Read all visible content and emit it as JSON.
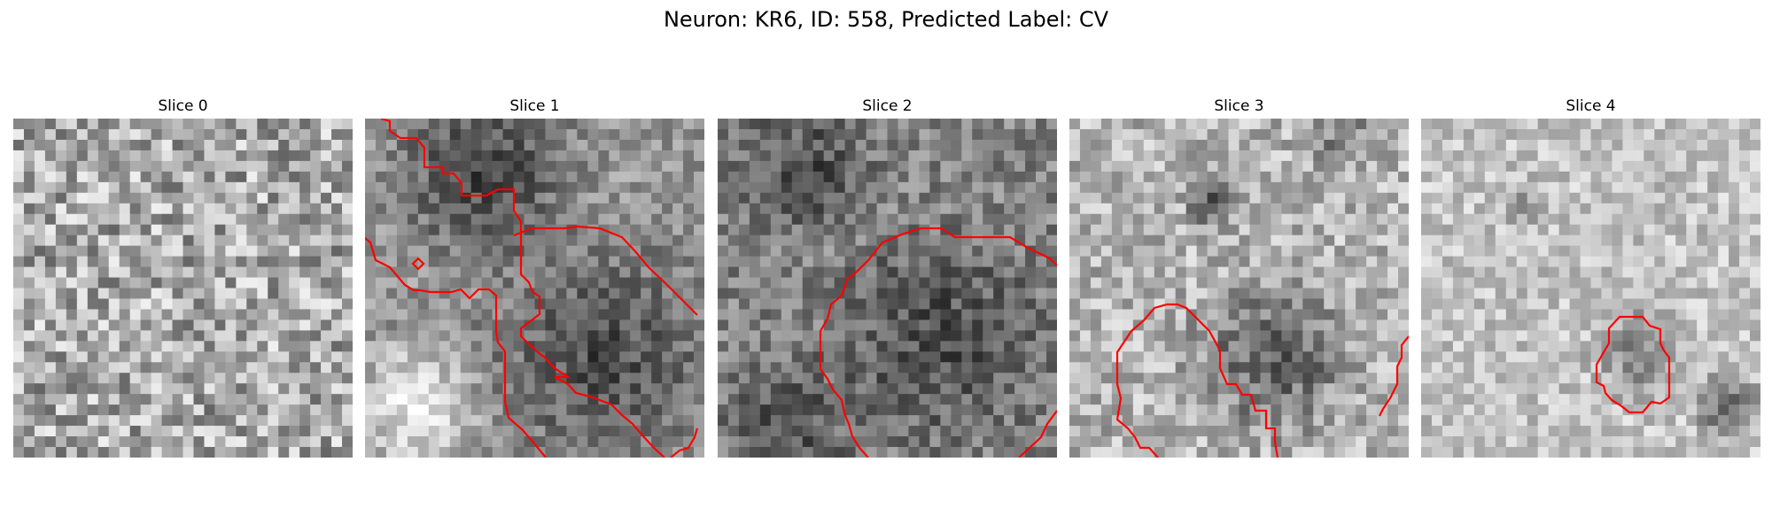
{
  "figure": {
    "title": "Neuron: KR6, ID: 558, Predicted Label: CV"
  },
  "panels": [
    {
      "title": "Slice 0",
      "base": 170,
      "contrast": 70,
      "seed": 11,
      "has_contour": false,
      "blobs": []
    },
    {
      "title": "Slice 1",
      "base": 150,
      "contrast": 40,
      "seed": 23,
      "has_contour": true,
      "blobs": [
        [
          0.35,
          0.15,
          0.35,
          -90
        ],
        [
          0.7,
          0.7,
          0.45,
          -80
        ],
        [
          0.15,
          0.85,
          0.25,
          90
        ]
      ]
    },
    {
      "title": "Slice 2",
      "base": 130,
      "contrast": 45,
      "seed": 37,
      "has_contour": true,
      "blobs": [
        [
          0.25,
          0.15,
          0.25,
          -60
        ],
        [
          0.65,
          0.65,
          0.4,
          -60
        ],
        [
          0.2,
          0.9,
          0.25,
          -60
        ]
      ]
    },
    {
      "title": "Slice 3",
      "base": 180,
      "contrast": 50,
      "seed": 41,
      "has_contour": true,
      "blobs": [
        [
          0.42,
          0.25,
          0.1,
          -120
        ],
        [
          0.6,
          0.7,
          0.3,
          -100
        ],
        [
          0.8,
          0.05,
          0.15,
          -60
        ]
      ]
    },
    {
      "title": "Slice 4",
      "base": 195,
      "contrast": 40,
      "seed": 53,
      "has_contour": true,
      "blobs": [
        [
          0.65,
          0.7,
          0.18,
          -70
        ],
        [
          0.9,
          0.85,
          0.12,
          -120
        ],
        [
          0.3,
          0.25,
          0.1,
          -40
        ]
      ]
    }
  ],
  "colors": {
    "contour": "#ff0000"
  }
}
